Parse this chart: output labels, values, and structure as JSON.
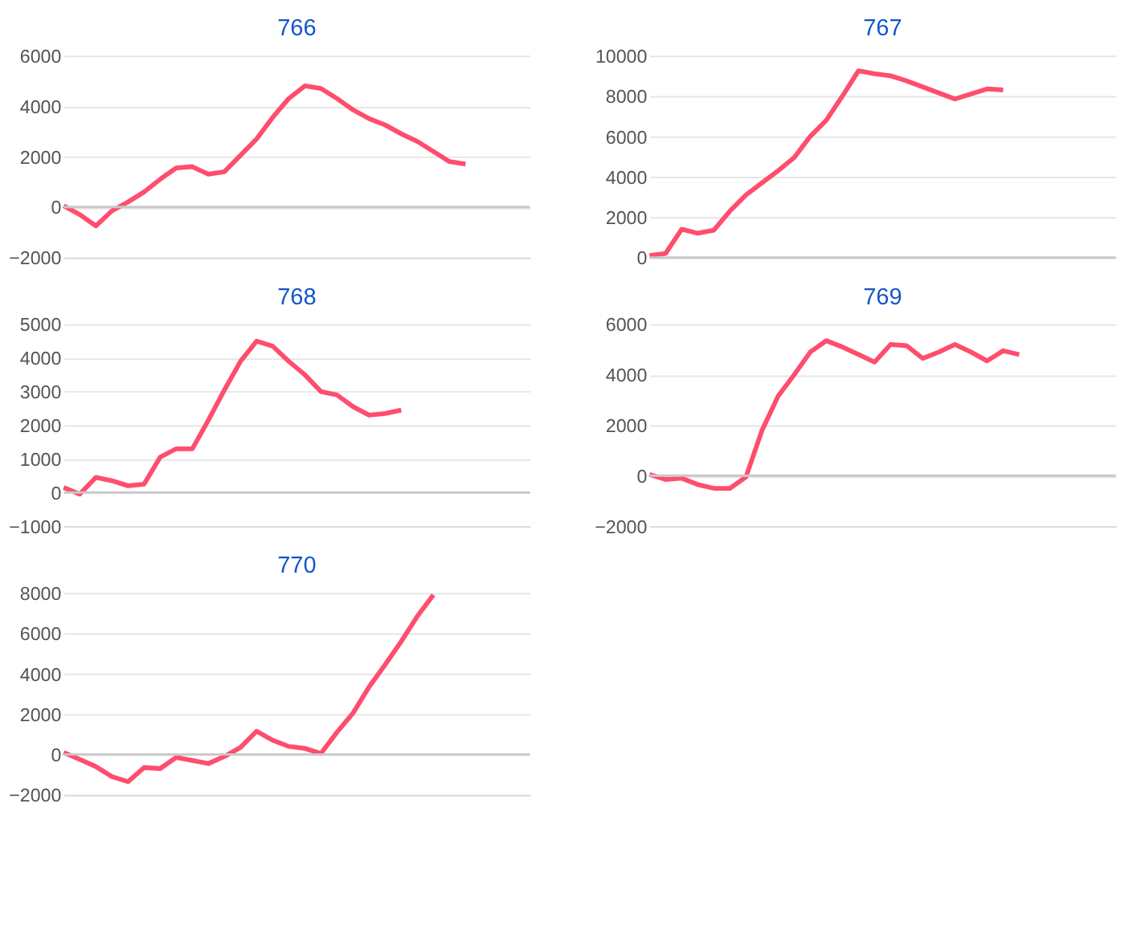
{
  "chart_data": [
    {
      "type": "line",
      "title": "766",
      "categories": [
        null,
        null,
        null,
        null,
        null,
        null,
        null,
        null,
        null,
        null,
        null,
        null,
        null,
        null,
        null,
        null,
        null,
        null,
        null,
        null,
        null,
        null,
        null,
        null,
        null,
        null,
        null,
        null,
        null,
        null
      ],
      "series": [
        {
          "color": "#ff4d6d",
          "values": [
            50,
            -300,
            -750,
            -150,
            200,
            600,
            1100,
            1550,
            1600,
            1300,
            1400,
            2050,
            2700,
            3550,
            4300,
            4800,
            4700,
            4300,
            3850,
            3500,
            3250,
            2900,
            2600,
            2200,
            1800,
            1700,
            null,
            null,
            null,
            null
          ]
        }
      ],
      "ylim": [
        -2000,
        6000
      ],
      "yticks": [
        -2000,
        0,
        2000,
        4000,
        6000
      ],
      "grid": "y",
      "tick_labels": "y",
      "ref_lines": [
        {
          "axis": "y",
          "value": 0,
          "color": "#c8c8c8"
        }
      ]
    },
    {
      "type": "line",
      "title": "767",
      "categories": [
        null,
        null,
        null,
        null,
        null,
        null,
        null,
        null,
        null,
        null,
        null,
        null,
        null,
        null,
        null,
        null,
        null,
        null,
        null,
        null,
        null,
        null,
        null,
        null,
        null,
        null,
        null,
        null,
        null,
        null
      ],
      "series": [
        {
          "color": "#ff4d6d",
          "values": [
            100,
            200,
            1400,
            1200,
            1350,
            2300,
            3100,
            3700,
            4300,
            4950,
            6000,
            6800,
            8000,
            9250,
            9100,
            9000,
            8750,
            8450,
            8150,
            7850,
            8100,
            8350,
            8300,
            null,
            null,
            null,
            null,
            null,
            null,
            null
          ]
        }
      ],
      "ylim": [
        0,
        10000
      ],
      "yticks": [
        0,
        2000,
        4000,
        6000,
        8000,
        10000
      ],
      "grid": "y",
      "tick_labels": "y",
      "ref_lines": [
        {
          "axis": "y",
          "value": 0,
          "color": "#c8c8c8"
        }
      ]
    },
    {
      "type": "line",
      "title": "768",
      "categories": [
        null,
        null,
        null,
        null,
        null,
        null,
        null,
        null,
        null,
        null,
        null,
        null,
        null,
        null,
        null,
        null,
        null,
        null,
        null,
        null,
        null,
        null,
        null,
        null,
        null,
        null,
        null,
        null,
        null,
        null
      ],
      "series": [
        {
          "color": "#ff4d6d",
          "values": [
            150,
            -50,
            450,
            350,
            200,
            250,
            1050,
            1300,
            1300,
            2150,
            3050,
            3900,
            4500,
            4350,
            3900,
            3500,
            3000,
            2900,
            2550,
            2300,
            2350,
            2450,
            null,
            null,
            null,
            null,
            null,
            null,
            null,
            null
          ]
        }
      ],
      "ylim": [
        -1000,
        5000
      ],
      "yticks": [
        -1000,
        0,
        1000,
        2000,
        3000,
        4000,
        5000
      ],
      "grid": "y",
      "tick_labels": "y",
      "ref_lines": [
        {
          "axis": "y",
          "value": 0,
          "color": "#c8c8c8"
        }
      ]
    },
    {
      "type": "line",
      "title": "769",
      "categories": [
        null,
        null,
        null,
        null,
        null,
        null,
        null,
        null,
        null,
        null,
        null,
        null,
        null,
        null,
        null,
        null,
        null,
        null,
        null,
        null,
        null,
        null,
        null,
        null,
        null,
        null,
        null,
        null,
        null,
        null
      ],
      "series": [
        {
          "color": "#ff4d6d",
          "values": [
            50,
            -150,
            -100,
            -350,
            -500,
            -500,
            -50,
            1800,
            3150,
            4000,
            4900,
            5350,
            5100,
            4800,
            4500,
            5200,
            5150,
            4650,
            4900,
            5200,
            4900,
            4550,
            4950,
            4800,
            null,
            null,
            null,
            null,
            null,
            null
          ]
        }
      ],
      "ylim": [
        -2000,
        6000
      ],
      "yticks": [
        -2000,
        0,
        2000,
        4000,
        6000
      ],
      "grid": "y",
      "tick_labels": "y",
      "ref_lines": [
        {
          "axis": "y",
          "value": 0,
          "color": "#c8c8c8"
        }
      ]
    },
    {
      "type": "line",
      "title": "770",
      "categories": [
        null,
        null,
        null,
        null,
        null,
        null,
        null,
        null,
        null,
        null,
        null,
        null,
        null,
        null,
        null,
        null,
        null,
        null,
        null,
        null,
        null,
        null,
        null,
        null,
        null,
        null,
        null,
        null,
        null,
        null
      ],
      "series": [
        {
          "color": "#ff4d6d",
          "values": [
            100,
            -250,
            -600,
            -1100,
            -1350,
            -650,
            -700,
            -150,
            -300,
            -450,
            -100,
            350,
            1150,
            700,
            400,
            300,
            50,
            1100,
            2050,
            3350,
            4450,
            5600,
            6850,
            7900,
            null,
            null,
            null,
            null,
            null,
            null
          ]
        }
      ],
      "ylim": [
        -2000,
        8000
      ],
      "yticks": [
        -2000,
        0,
        2000,
        4000,
        6000,
        8000
      ],
      "grid": "y",
      "tick_labels": "y",
      "ref_lines": [
        {
          "axis": "y",
          "value": 0,
          "color": "#c8c8c8"
        }
      ]
    }
  ]
}
